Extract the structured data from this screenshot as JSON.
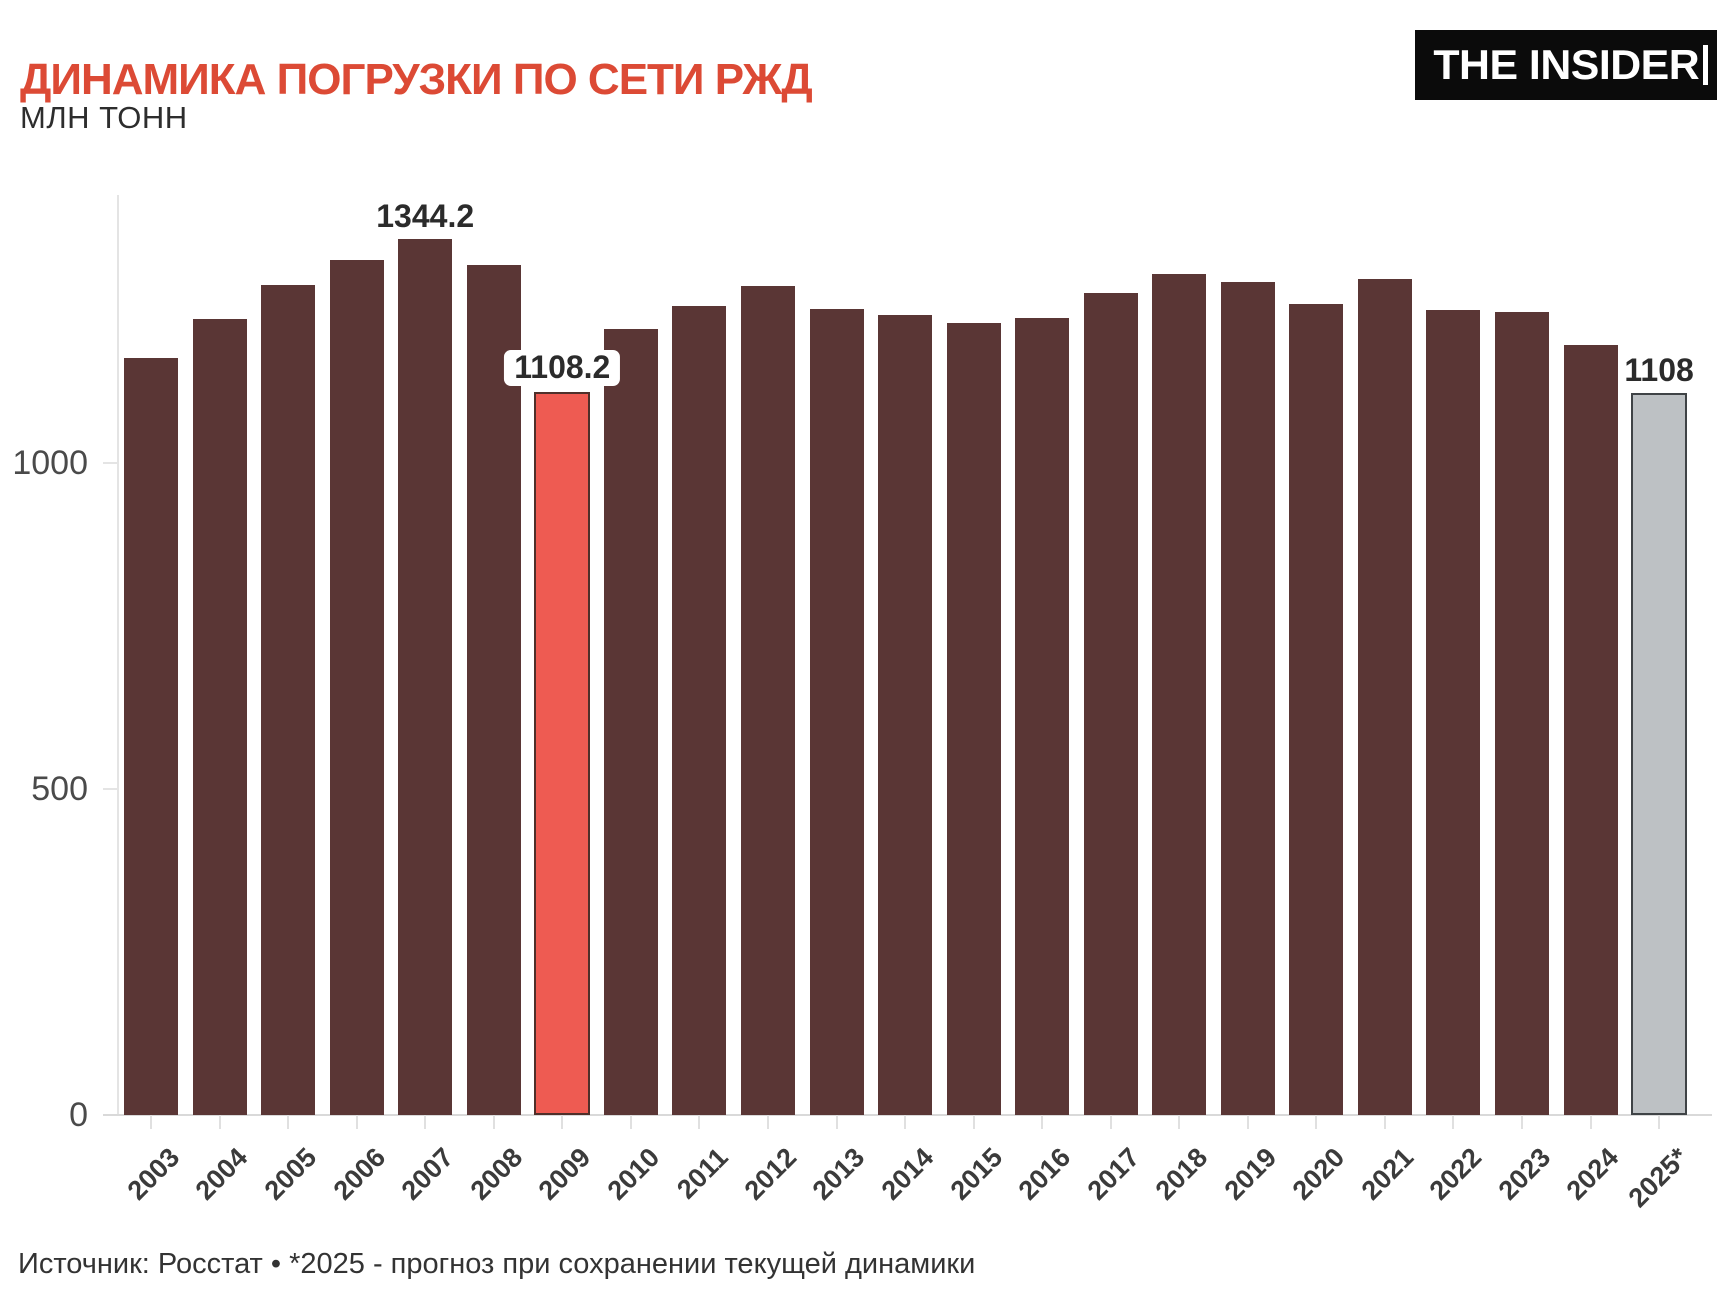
{
  "header": {
    "title": "ДИНАМИКА ПОГРУЗКИ ПО СЕТИ РЖД",
    "subtitle": "МЛН ТОНН",
    "logo_text": "THE INSIDER"
  },
  "footer": {
    "source_line": "Источник: Росстат • *2025 - прогноз при сохранении текущей динамики"
  },
  "colors": {
    "title_red": "#dc4a35",
    "bar_default": "#5a3635",
    "bar_highlight": "#ee5b52",
    "bar_highlight_border": "#4f2f2a",
    "bar_forecast": "#bdc1c4",
    "bar_forecast_border": "#3f4346",
    "axis_gray": "#e0e0e0"
  },
  "chart_data": {
    "type": "bar",
    "title": "ДИНАМИКА ПОГРУЗКИ ПО СЕТИ РЖД",
    "ylabel": "МЛН ТОНН",
    "xlabel": "",
    "grid": false,
    "legend_position": "none",
    "ylim": [
      0,
      1410
    ],
    "yticks": [
      0,
      500,
      1000
    ],
    "categories": [
      "2003",
      "2004",
      "2005",
      "2006",
      "2007",
      "2008",
      "2009",
      "2010",
      "2011",
      "2012",
      "2013",
      "2014",
      "2015",
      "2016",
      "2017",
      "2018",
      "2019",
      "2020",
      "2021",
      "2022",
      "2023",
      "2024",
      "2025*"
    ],
    "values": [
      1160.8,
      1221.2,
      1273.0,
      1311.3,
      1344.2,
      1304.0,
      1108.2,
      1205.8,
      1241.5,
      1271.9,
      1236.8,
      1226.9,
      1214.5,
      1222.3,
      1261.3,
      1289.6,
      1278.1,
      1243.6,
      1282.6,
      1234.3,
      1232.2,
      1181.4,
      1108.0
    ],
    "bar_styles": [
      "default",
      "default",
      "default",
      "default",
      "default",
      "default",
      "highlight",
      "default",
      "default",
      "default",
      "default",
      "default",
      "default",
      "default",
      "default",
      "default",
      "default",
      "default",
      "default",
      "default",
      "default",
      "default",
      "forecast"
    ],
    "annotations": [
      {
        "category": "2007",
        "text": "1344.2",
        "boxed": false
      },
      {
        "category": "2009",
        "text": "1108.2",
        "boxed": true
      },
      {
        "category": "2025*",
        "text": "1108",
        "boxed": false
      }
    ]
  }
}
